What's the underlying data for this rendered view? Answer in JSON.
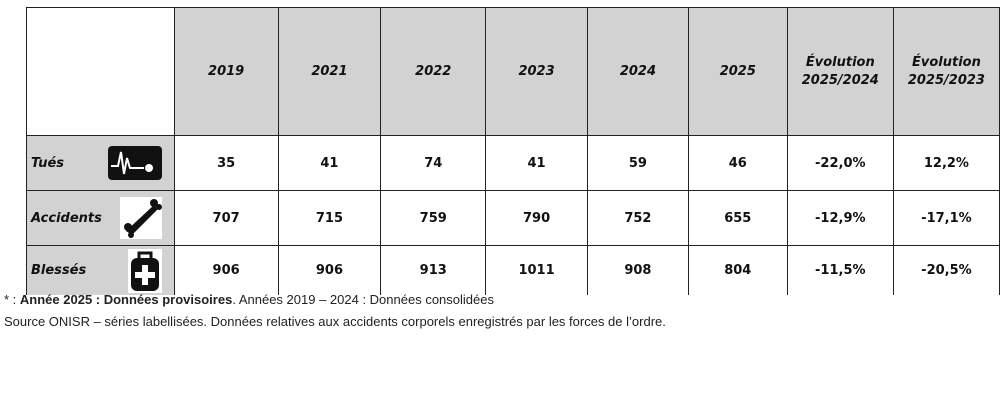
{
  "table": {
    "columns": [
      "2019",
      "2021",
      "2022",
      "2023",
      "2024",
      "2025",
      "Évolution 2025/2024",
      "Évolution 2025/2023"
    ],
    "rows": [
      {
        "label": "Tués",
        "icon": "heartbeat-monitor-icon",
        "values": [
          "35",
          "41",
          "74",
          "41",
          "59",
          "46"
        ],
        "evo_2024": "-22,0%",
        "evo_2023": "12,2%",
        "evo_2024_color": "#2aa52a",
        "evo_2023_color": "#e02424"
      },
      {
        "label": "Accidents",
        "icon": "overturned-car-icon",
        "values": [
          "707",
          "715",
          "759",
          "790",
          "752",
          "655"
        ],
        "evo_2024": "-12,9%",
        "evo_2023": "-17,1%",
        "evo_2024_color": "#2aa52a",
        "evo_2023_color": "#2aa52a"
      },
      {
        "label": "Blessés",
        "icon": "first-aid-kit-icon",
        "values": [
          "906",
          "906",
          "913",
          "1011",
          "908",
          "804"
        ],
        "evo_2024": "-11,5%",
        "evo_2023": "-20,5%",
        "evo_2024_color": "#2aa52a",
        "evo_2023_color": "#2aa52a"
      }
    ]
  },
  "footnote": {
    "prefix": "* : ",
    "bold": "Année 2025 : Données provisoires",
    "rest": ". Années 2019 – 2024 : Données consolidées",
    "source": "Source ONISR – séries labellisées. Données relatives aux accidents corporels enregistrés par les forces de l’ordre."
  }
}
